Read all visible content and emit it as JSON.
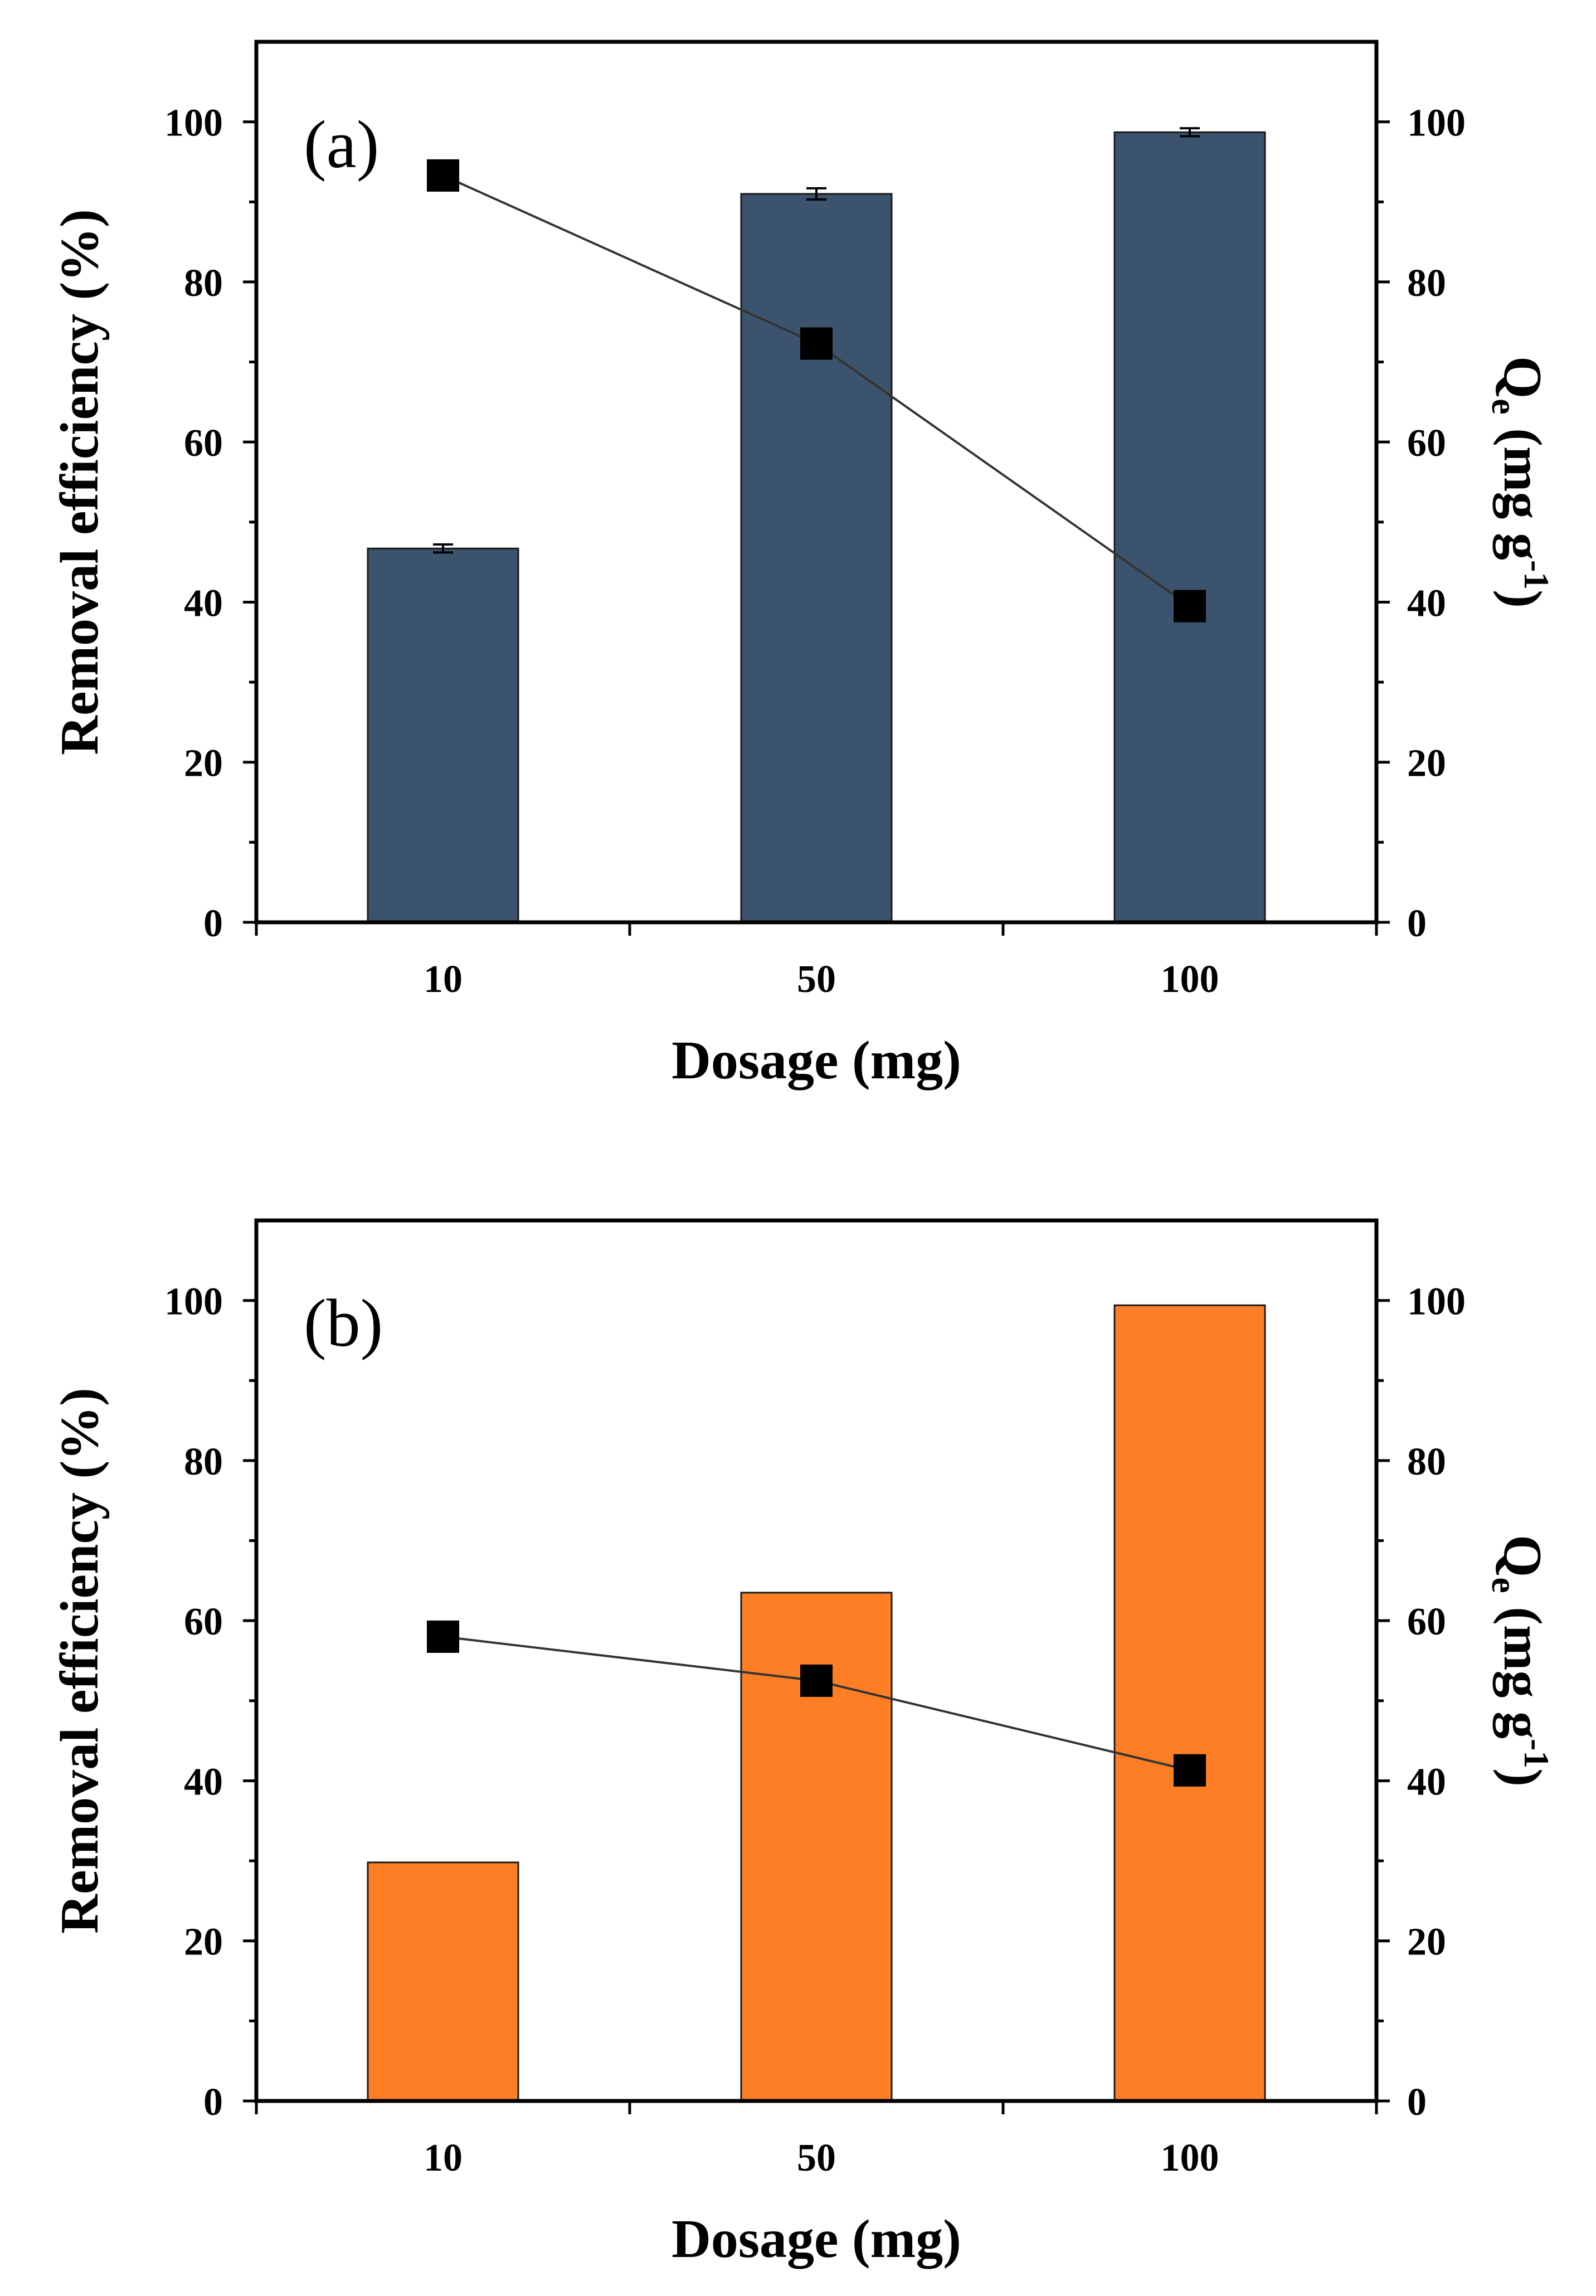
{
  "chart_data": [
    {
      "type": "bar",
      "panel_label": "(a)",
      "xlabel": "Dosage (mg)",
      "ylabel": "Removal efficiency (%)",
      "y2label_main": "Q",
      "y2label_sub": "e",
      "y2label_units": " (mg g",
      "y2label_sup": "-1",
      "y2label_close": ")",
      "categories": [
        "10",
        "50",
        "100"
      ],
      "ylim": [
        0,
        110
      ],
      "y2lim": [
        0,
        110
      ],
      "yticks": [
        0,
        20,
        40,
        60,
        80,
        100
      ],
      "y2ticks": [
        0,
        20,
        40,
        60,
        80,
        100
      ],
      "bar_color": "#3b536d",
      "series": [
        {
          "name": "Removal efficiency",
          "kind": "bar",
          "axis": "left",
          "values": [
            46.7,
            91.0,
            98.7
          ],
          "errors": [
            0.5,
            0.7,
            0.5
          ]
        },
        {
          "name": "Qe",
          "kind": "line",
          "axis": "right",
          "values": [
            93.3,
            72.3,
            39.5
          ]
        }
      ]
    },
    {
      "type": "bar",
      "panel_label": "(b)",
      "xlabel": "Dosage (mg)",
      "ylabel": "Removal efficiency (%)",
      "y2label_main": "Q",
      "y2label_sub": "e",
      "y2label_units": " (mg g",
      "y2label_sup": "-1",
      "y2label_close": ")",
      "categories": [
        "10",
        "50",
        "100"
      ],
      "ylim": [
        0,
        110
      ],
      "y2lim": [
        0,
        110
      ],
      "yticks": [
        0,
        20,
        40,
        60,
        80,
        100
      ],
      "y2ticks": [
        0,
        20,
        40,
        60,
        80,
        100
      ],
      "bar_color": "#fd7e24",
      "series": [
        {
          "name": "Removal efficiency",
          "kind": "bar",
          "axis": "left",
          "values": [
            29.8,
            63.5,
            99.4
          ]
        },
        {
          "name": "Qe",
          "kind": "line",
          "axis": "right",
          "values": [
            58.0,
            52.5,
            41.3
          ]
        }
      ]
    }
  ]
}
